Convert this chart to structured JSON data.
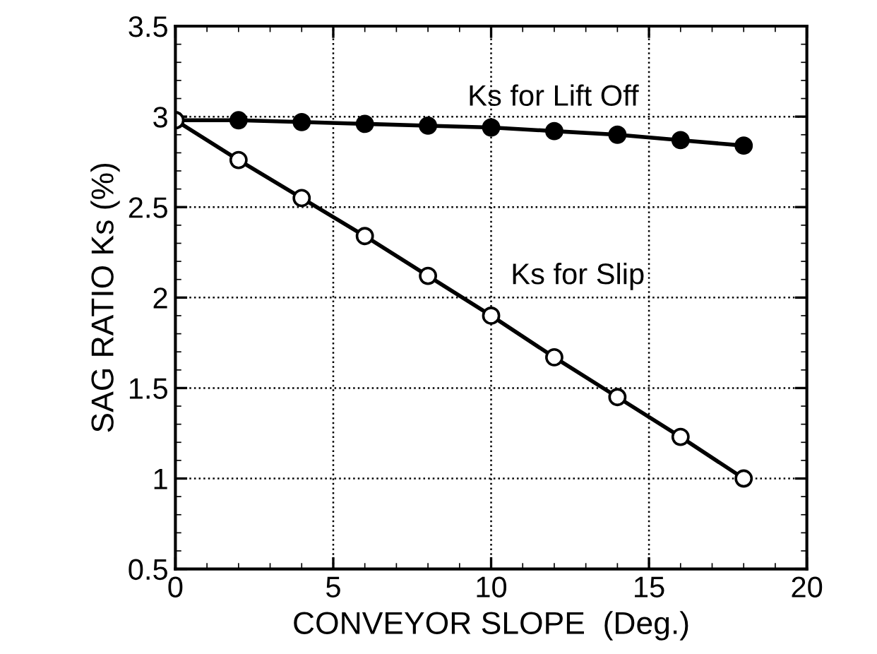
{
  "chart_data": {
    "type": "line",
    "xlabel": "CONVEYOR SLOPE  (Deg.)",
    "ylabel": "SAG RATIO Ks (%)",
    "x": [
      0,
      2,
      4,
      6,
      8,
      10,
      12,
      14,
      16,
      18
    ],
    "series": [
      {
        "name": "Ks for Lift Off",
        "color": "#000000",
        "marker": "circle",
        "values": [
          2.98,
          2.98,
          2.97,
          2.96,
          2.95,
          2.94,
          2.92,
          2.9,
          2.87,
          2.84
        ]
      },
      {
        "name": "Ks for Slip",
        "color": "#000000",
        "marker": "circle",
        "values": [
          2.98,
          2.76,
          2.55,
          2.34,
          2.12,
          1.9,
          1.67,
          1.45,
          1.23,
          1.0
        ]
      }
    ],
    "xlim": [
      0,
      20
    ],
    "xticks": [
      0,
      5,
      10,
      15,
      20
    ],
    "ylim": [
      0.5,
      3.5
    ],
    "yticks": [
      0.5,
      1,
      1.5,
      2,
      2.5,
      3,
      3.5
    ],
    "grid": true,
    "legend": false,
    "line_style": "solid"
  }
}
